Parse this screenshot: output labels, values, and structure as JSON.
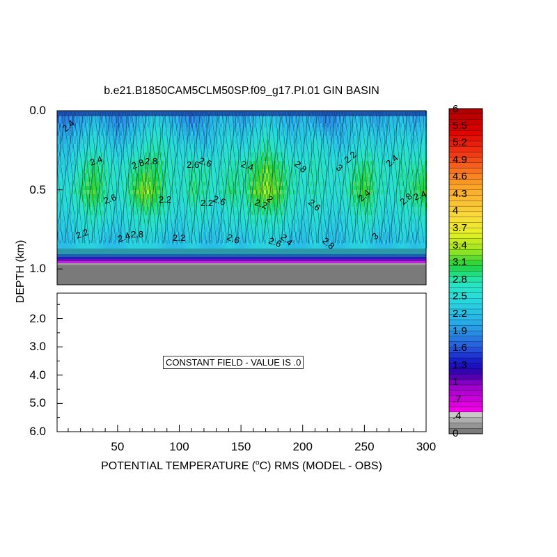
{
  "chart_data": [
    {
      "type": "heatmap",
      "panel": "upper",
      "title": "b.e21.B1850CAM5CLM50SP.f09_g17.PI.01 GIN BASIN",
      "xlabel": "POTENTIAL TEMPERATURE (°C) RMS (MODEL - OBS)",
      "ylabel": "DEPTH (km)",
      "xlim": [
        1,
        300
      ],
      "ylim": [
        1.1,
        0.0
      ],
      "y_ticks": [
        "0.0",
        "0.5",
        "1.0"
      ],
      "x": [
        10,
        20,
        30,
        40,
        50,
        60,
        70,
        80,
        90,
        100,
        110,
        120,
        130,
        140,
        150,
        160,
        170,
        180,
        190,
        200,
        210,
        220,
        230,
        240,
        250,
        260,
        270,
        280,
        290,
        300
      ],
      "depth": [
        0.05,
        0.2,
        0.35,
        0.5,
        0.65,
        0.8
      ],
      "values": [
        [
          1.8,
          2.0,
          2.2,
          2.0,
          1.8,
          2.0,
          2.2,
          2.4,
          2.2,
          2.0,
          1.8,
          2.0,
          2.2,
          2.2,
          2.0,
          2.2,
          2.4,
          2.2,
          2.0,
          2.2,
          2.0,
          1.8,
          2.0,
          2.2,
          2.2,
          2.0,
          2.2,
          2.2,
          2.0,
          2.2
        ],
        [
          2.2,
          2.4,
          2.6,
          2.4,
          2.2,
          2.4,
          2.6,
          2.8,
          2.6,
          2.4,
          2.4,
          2.2,
          2.4,
          2.6,
          2.4,
          2.6,
          2.8,
          2.6,
          2.4,
          2.4,
          2.6,
          2.4,
          2.2,
          2.4,
          2.6,
          2.4,
          2.4,
          2.6,
          2.4,
          2.6
        ],
        [
          2.4,
          2.8,
          3.0,
          2.8,
          2.6,
          2.8,
          3.0,
          3.0,
          2.8,
          2.6,
          2.8,
          2.8,
          2.6,
          2.8,
          2.8,
          3.0,
          3.2,
          3.0,
          2.8,
          2.6,
          2.8,
          2.6,
          2.6,
          2.8,
          3.0,
          2.8,
          2.6,
          2.8,
          2.8,
          3.0
        ],
        [
          2.6,
          3.0,
          3.2,
          2.8,
          2.6,
          3.0,
          3.4,
          3.2,
          2.8,
          2.6,
          3.0,
          2.8,
          2.6,
          3.0,
          2.8,
          3.2,
          3.4,
          3.2,
          2.8,
          2.6,
          2.8,
          2.6,
          2.6,
          3.0,
          3.2,
          2.8,
          2.6,
          2.8,
          3.0,
          3.2
        ],
        [
          2.4,
          2.6,
          2.8,
          2.6,
          2.4,
          2.6,
          2.8,
          2.8,
          2.6,
          2.4,
          2.6,
          2.6,
          2.4,
          2.6,
          2.6,
          2.8,
          2.8,
          2.8,
          2.6,
          2.4,
          2.6,
          2.4,
          2.4,
          2.6,
          2.8,
          2.6,
          2.4,
          2.6,
          2.6,
          2.8
        ],
        [
          2.2,
          2.4,
          2.4,
          2.2,
          2.2,
          2.4,
          2.4,
          2.4,
          2.2,
          2.2,
          2.4,
          2.2,
          2.2,
          2.4,
          2.2,
          2.4,
          2.4,
          2.4,
          2.2,
          2.2,
          2.4,
          2.2,
          2.2,
          2.4,
          2.4,
          2.2,
          2.2,
          2.4,
          2.2,
          2.4
        ]
      ],
      "contour_labels": [
        "2.4",
        "2.8",
        "2.2",
        "2.6",
        "3",
        "2.8",
        "2.4",
        "2.6",
        "2.2",
        "2.8",
        "2.4",
        "2.6",
        "2.2",
        "2.4",
        "2.6",
        "3",
        "2.4",
        "2.2",
        "2.6",
        "2.8",
        "2.4",
        "2.2",
        "2.8",
        "2.6",
        "2.4",
        "2.2",
        "2.4",
        "2.8",
        "2.6",
        "2"
      ]
    },
    {
      "type": "heatmap",
      "panel": "lower",
      "ylim": [
        1.1,
        6.0
      ],
      "y_ticks": [
        "2.0",
        "3.0",
        "4.0",
        "5.0",
        "6.0"
      ],
      "x_ticks": [
        "50",
        "100",
        "150",
        "200",
        "250",
        "300"
      ],
      "annotation": "CONSTANT FIELD - VALUE IS .0"
    },
    {
      "type": "colorbar",
      "range": [
        0,
        6
      ],
      "labels": [
        "6",
        "5.5",
        "5.2",
        "4.9",
        "4.6",
        "4.3",
        "4",
        "3.7",
        "3.4",
        "3.1",
        "2.8",
        "2.5",
        "2.2",
        "1.9",
        "1.6",
        "1.3",
        "1",
        ".7",
        ".4",
        "0"
      ]
    }
  ]
}
